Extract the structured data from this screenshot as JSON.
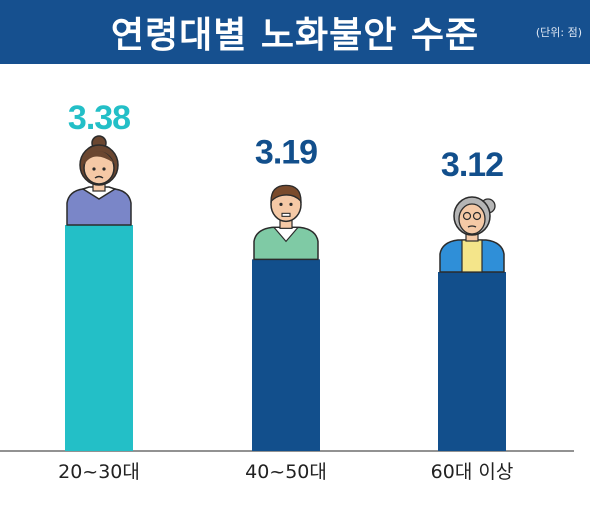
{
  "header": {
    "title": "연령대별 노화불안 수준",
    "unit": "(단위: 점)"
  },
  "chart_data": {
    "type": "bar",
    "title": "연령대별 노화불안 수준",
    "unit": "(단위: 점)",
    "categories": [
      "20~30대",
      "40~50대",
      "60대 이상"
    ],
    "values": [
      3.38,
      3.19,
      3.12
    ],
    "value_labels": [
      "3.38",
      "3.19",
      "3.12"
    ],
    "bar_colors": [
      "#23bfc7",
      "#124f8c",
      "#124f8c"
    ],
    "label_colors": [
      "#23bfc7",
      "#124f8c",
      "#124f8c"
    ],
    "figures": [
      "young-woman-icon",
      "middle-aged-man-icon",
      "elderly-woman-icon"
    ],
    "grid": false,
    "legend": "none"
  }
}
